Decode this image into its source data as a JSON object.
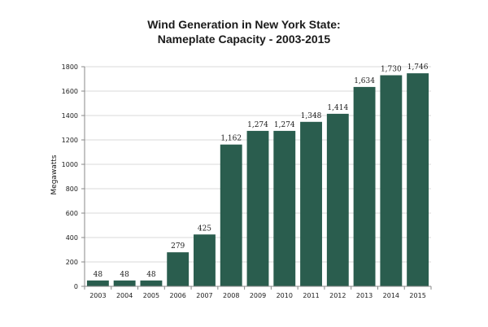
{
  "chart_data": {
    "type": "bar",
    "title_line1": "Wind Generation in New York State:",
    "title_line2": "Nameplate Capacity - 2003-2015",
    "ylabel": "Megawatts",
    "xlabel": "",
    "categories": [
      "2003",
      "2004",
      "2005",
      "2006",
      "2007",
      "2008",
      "2009",
      "2010",
      "2011",
      "2012",
      "2013",
      "2014",
      "2015"
    ],
    "values": [
      48,
      48,
      48,
      279,
      425,
      1162,
      1274,
      1274,
      1348,
      1414,
      1634,
      1730,
      1746
    ],
    "value_labels": [
      "48",
      "48",
      "48",
      "279",
      "425",
      "1,162",
      "1,274",
      "1,274",
      "1,348",
      "1,414",
      "1,634",
      "1,730",
      "1,746"
    ],
    "ylim": [
      0,
      1800
    ],
    "yticks": [
      "0",
      "200",
      "400",
      "600",
      "800",
      "1000",
      "1200",
      "1400",
      "1600",
      "1800"
    ],
    "grid": true,
    "bar_color": "#2a5d4e"
  }
}
